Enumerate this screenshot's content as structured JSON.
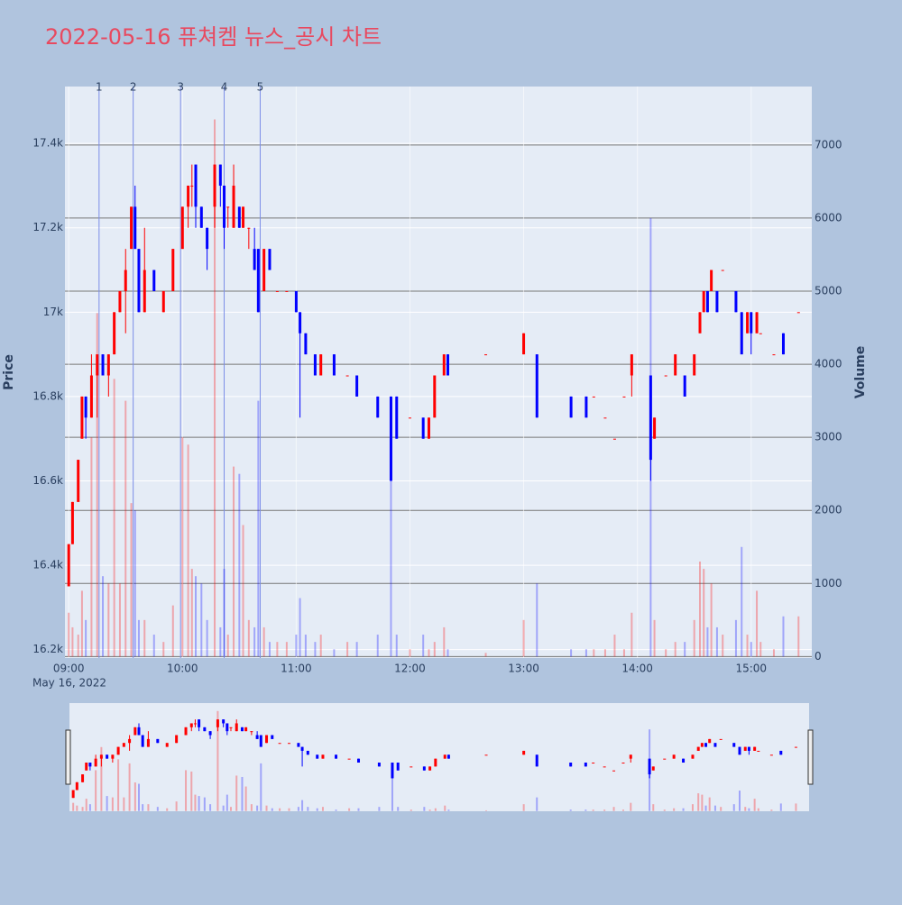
{
  "chart_data": {
    "type": "candlestick",
    "title": "2022-05-16 퓨쳐켐 뉴스_공시 차트",
    "ylabel": "Price",
    "y2label": "Volume",
    "date_label": "May 16, 2022",
    "increasing_color": "#ff0000",
    "decreasing_color": "#0000ff",
    "x": [
      "2022-05-16 09:00",
      "2022-05-16 09:02",
      "2022-05-16 09:05",
      "2022-05-16 09:07",
      "2022-05-16 09:09",
      "2022-05-16 09:12",
      "2022-05-16 09:15",
      "2022-05-16 09:18",
      "2022-05-16 09:21",
      "2022-05-16 09:24",
      "2022-05-16 09:27",
      "2022-05-16 09:30",
      "2022-05-16 09:33",
      "2022-05-16 09:35",
      "2022-05-16 09:37",
      "2022-05-16 09:40",
      "2022-05-16 09:45",
      "2022-05-16 09:50",
      "2022-05-16 09:55",
      "2022-05-16 10:00",
      "2022-05-16 10:03",
      "2022-05-16 10:05",
      "2022-05-16 10:07",
      "2022-05-16 10:10",
      "2022-05-16 10:13",
      "2022-05-16 10:17",
      "2022-05-16 10:20",
      "2022-05-16 10:22",
      "2022-05-16 10:24",
      "2022-05-16 10:27",
      "2022-05-16 10:30",
      "2022-05-16 10:32",
      "2022-05-16 10:35",
      "2022-05-16 10:38",
      "2022-05-16 10:40",
      "2022-05-16 10:43",
      "2022-05-16 10:46",
      "2022-05-16 10:50",
      "2022-05-16 10:55",
      "2022-05-16 11:00",
      "2022-05-16 11:02",
      "2022-05-16 11:05",
      "2022-05-16 11:10",
      "2022-05-16 11:13",
      "2022-05-16 11:20",
      "2022-05-16 11:27",
      "2022-05-16 11:32",
      "2022-05-16 11:43",
      "2022-05-16 11:50",
      "2022-05-16 11:53",
      "2022-05-16 12:00",
      "2022-05-16 12:07",
      "2022-05-16 12:10",
      "2022-05-16 12:13",
      "2022-05-16 12:18",
      "2022-05-16 12:20",
      "2022-05-16 12:40",
      "2022-05-16 13:00",
      "2022-05-16 13:07",
      "2022-05-16 13:25",
      "2022-05-16 13:33",
      "2022-05-16 13:37",
      "2022-05-16 13:43",
      "2022-05-16 13:48",
      "2022-05-16 13:53",
      "2022-05-16 13:57",
      "2022-05-16 14:07",
      "2022-05-16 14:09",
      "2022-05-16 14:15",
      "2022-05-16 14:20",
      "2022-05-16 14:25",
      "2022-05-16 14:30",
      "2022-05-16 14:33",
      "2022-05-16 14:35",
      "2022-05-16 14:37",
      "2022-05-16 14:39",
      "2022-05-16 14:42",
      "2022-05-16 14:45",
      "2022-05-16 14:52",
      "2022-05-16 14:55",
      "2022-05-16 14:58",
      "2022-05-16 15:00",
      "2022-05-16 15:03",
      "2022-05-16 15:05",
      "2022-05-16 15:12",
      "2022-05-16 15:17",
      "2022-05-16 15:25"
    ],
    "open": [
      16350,
      16450,
      16550,
      16700,
      16800,
      16750,
      16850,
      16900,
      16850,
      16900,
      17000,
      17050,
      17150,
      17250,
      17150,
      17000,
      17100,
      17000,
      17050,
      17150,
      17250,
      17300,
      17350,
      17250,
      17200,
      17250,
      17350,
      17300,
      17250,
      17200,
      17250,
      17200,
      17200,
      17150,
      17150,
      17050,
      17150,
      17050,
      17050,
      17050,
      17000,
      16950,
      16900,
      16850,
      16900,
      16850,
      16850,
      16800,
      16800,
      16800,
      16750,
      16750,
      16700,
      16750,
      16850,
      16900,
      16900,
      16900,
      16900,
      16800,
      16800,
      16800,
      16750,
      16700,
      16800,
      16850,
      16850,
      16700,
      16850,
      16850,
      16850,
      16850,
      16950,
      17000,
      17050,
      17050,
      17050,
      17100,
      17050,
      17000,
      16950,
      17000,
      16950,
      16950,
      16900,
      16950,
      17000
    ],
    "high": [
      16450,
      16550,
      16650,
      16800,
      16800,
      16900,
      16900,
      16900,
      16900,
      17000,
      17050,
      17150,
      17250,
      17300,
      17150,
      17200,
      17100,
      17050,
      17150,
      17250,
      17300,
      17350,
      17350,
      17250,
      17200,
      17350,
      17350,
      17300,
      17250,
      17350,
      17250,
      17250,
      17200,
      17200,
      17150,
      17150,
      17150,
      17050,
      17050,
      17050,
      17000,
      16950,
      16900,
      16900,
      16900,
      16850,
      16850,
      16800,
      16800,
      16800,
      16750,
      16750,
      16750,
      16850,
      16900,
      16900,
      16900,
      16950,
      16900,
      16800,
      16800,
      16800,
      16750,
      16700,
      16800,
      16900,
      16850,
      16750,
      16850,
      16900,
      16850,
      16900,
      17000,
      17050,
      17050,
      17100,
      17050,
      17100,
      17050,
      17000,
      17000,
      17000,
      17000,
      16950,
      16900,
      16950,
      17000
    ],
    "low": [
      16350,
      16450,
      16550,
      16700,
      16700,
      16750,
      16750,
      16850,
      16800,
      16900,
      17000,
      16950,
      17150,
      17150,
      17000,
      17000,
      17050,
      17000,
      17050,
      17150,
      17200,
      17250,
      17200,
      17200,
      17100,
      17200,
      17250,
      17150,
      17200,
      17200,
      17200,
      17200,
      17150,
      17100,
      17000,
      17050,
      17100,
      17050,
      17050,
      17000,
      16750,
      16900,
      16850,
      16850,
      16850,
      16850,
      16800,
      16750,
      16600,
      16700,
      16750,
      16700,
      16700,
      16750,
      16850,
      16850,
      16900,
      16900,
      16750,
      16750,
      16750,
      16800,
      16750,
      16700,
      16800,
      16800,
      16600,
      16700,
      16850,
      16850,
      16800,
      16850,
      16950,
      17000,
      17000,
      17050,
      17000,
      17100,
      17000,
      16900,
      16950,
      16900,
      16950,
      16950,
      16900,
      16900,
      17000
    ],
    "close": [
      16450,
      16550,
      16650,
      16800,
      16750,
      16850,
      16900,
      16850,
      16900,
      17000,
      17050,
      17100,
      17250,
      17150,
      17000,
      17100,
      17050,
      17050,
      17150,
      17250,
      17300,
      17300,
      17250,
      17200,
      17150,
      17350,
      17300,
      17200,
      17250,
      17300,
      17200,
      17250,
      17200,
      17100,
      17000,
      17150,
      17100,
      17050,
      17050,
      17000,
      16950,
      16900,
      16850,
      16900,
      16850,
      16850,
      16800,
      16750,
      16600,
      16700,
      16750,
      16700,
      16750,
      16850,
      16900,
      16850,
      16900,
      16950,
      16750,
      16750,
      16750,
      16800,
      16750,
      16700,
      16800,
      16900,
      16650,
      16750,
      16850,
      16900,
      16800,
      16900,
      17000,
      17050,
      17000,
      17100,
      17000,
      17100,
      17000,
      16900,
      17000,
      16950,
      17000,
      16950,
      16900,
      16900,
      17000
    ],
    "volume": [
      600,
      400,
      300,
      900,
      500,
      3000,
      4700,
      1100,
      1000,
      3800,
      1000,
      3500,
      2100,
      2000,
      500,
      500,
      300,
      200,
      700,
      3000,
      2900,
      1200,
      1100,
      1000,
      500,
      7350,
      400,
      1200,
      300,
      2600,
      2500,
      1800,
      500,
      400,
      3500,
      400,
      200,
      200,
      200,
      300,
      800,
      300,
      200,
      300,
      100,
      200,
      200,
      300,
      3400,
      300,
      100,
      300,
      100,
      200,
      400,
      100,
      50,
      500,
      1000,
      100,
      100,
      100,
      100,
      300,
      100,
      600,
      6000,
      500,
      100,
      200,
      200,
      500,
      1300,
      1200,
      400,
      1000,
      400,
      300,
      500,
      1500,
      300,
      200,
      900,
      200,
      100,
      550,
      550
    ],
    "xlim": [
      "2022-05-16 08:58",
      "2022-05-16 15:32"
    ],
    "xticks": [
      {
        "value": "2022-05-16 09:00",
        "label": "09:00"
      },
      {
        "value": "2022-05-16 10:00",
        "label": "10:00"
      },
      {
        "value": "2022-05-16 11:00",
        "label": "11:00"
      },
      {
        "value": "2022-05-16 12:00",
        "label": "12:00"
      },
      {
        "value": "2022-05-16 13:00",
        "label": "13:00"
      },
      {
        "value": "2022-05-16 14:00",
        "label": "14:00"
      },
      {
        "value": "2022-05-16 15:00",
        "label": "15:00"
      }
    ],
    "ylim": [
      16180,
      17535
    ],
    "yticks": [
      {
        "value": 16200,
        "label": "16.2k"
      },
      {
        "value": 16400,
        "label": "16.4k"
      },
      {
        "value": 16600,
        "label": "16.6k"
      },
      {
        "value": 16800,
        "label": "16.8k"
      },
      {
        "value": 17000,
        "label": "17k"
      },
      {
        "value": 17200,
        "label": "17.2k"
      },
      {
        "value": 17400,
        "label": "17.4k"
      }
    ],
    "y2lim": [
      -20,
      7800
    ],
    "y2ticks": [
      0,
      1000,
      2000,
      3000,
      4000,
      5000,
      6000,
      7000
    ],
    "news": [
      {
        "x": "2022-05-16 09:16",
        "label": "1"
      },
      {
        "x": "2022-05-16 09:34",
        "label": "2"
      },
      {
        "x": "2022-05-16 09:59",
        "label": "3"
      },
      {
        "x": "2022-05-16 10:22",
        "label": "4"
      },
      {
        "x": "2022-05-16 10:41",
        "label": "5"
      }
    ]
  }
}
